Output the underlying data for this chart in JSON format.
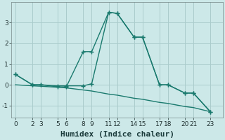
{
  "xlabel": "Humidex (Indice chaleur)",
  "ylabel": "",
  "background_color": "#cce8e8",
  "grid_color": "#aacccc",
  "line_color": "#1a7a6e",
  "x_ticks": [
    0,
    2,
    3,
    5,
    6,
    8,
    9,
    11,
    12,
    14,
    15,
    17,
    18,
    20,
    21,
    23
  ],
  "ylim": [
    -1.6,
    4.0
  ],
  "xlim": [
    -0.5,
    24.5
  ],
  "line1_x": [
    0,
    2,
    3,
    5,
    6,
    8,
    9,
    11,
    12,
    14,
    15,
    17,
    18,
    20,
    21,
    23
  ],
  "line1_y": [
    0.5,
    0.0,
    0.0,
    -0.05,
    -0.05,
    -0.05,
    0.05,
    3.5,
    3.45,
    2.3,
    2.3,
    0.0,
    0.0,
    -0.4,
    -0.4,
    -1.3
  ],
  "line1_markers": [
    0,
    2,
    3,
    5,
    6,
    8,
    9,
    11,
    12,
    14,
    15,
    17,
    18,
    20,
    21,
    23
  ],
  "line2_x": [
    0,
    2,
    3,
    5,
    6,
    8,
    9,
    11,
    12,
    14,
    15,
    17,
    18,
    20,
    21,
    23
  ],
  "line2_y": [
    0.5,
    0.0,
    0.0,
    -0.1,
    -0.1,
    1.6,
    1.6,
    3.5,
    3.45,
    2.3,
    2.3,
    0.0,
    0.0,
    -0.4,
    -0.4,
    -1.3
  ],
  "line2_markers": [
    8,
    9,
    11,
    12,
    14,
    15,
    17,
    18
  ],
  "line3_x": [
    0,
    2,
    3,
    5,
    6,
    8,
    9,
    11,
    12,
    14,
    15,
    17,
    18,
    20,
    21,
    23
  ],
  "line3_y": [
    0.0,
    -0.05,
    -0.07,
    -0.12,
    -0.15,
    -0.25,
    -0.3,
    -0.45,
    -0.5,
    -0.65,
    -0.7,
    -0.85,
    -0.9,
    -1.05,
    -1.1,
    -1.3
  ],
  "marker_size": 3,
  "line_width": 1.0,
  "font_size": 8,
  "tick_font_size": 6.5
}
